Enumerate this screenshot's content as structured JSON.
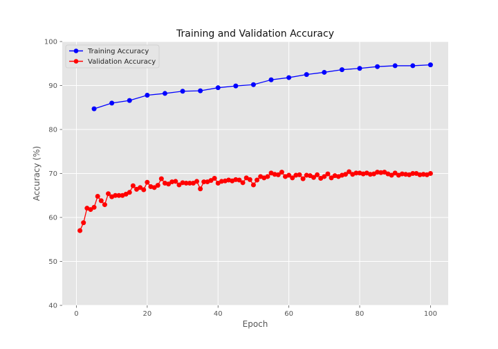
{
  "chart_data": {
    "type": "line",
    "title": "Training and Validation Accuracy",
    "xlabel": "Epoch",
    "ylabel": "Accuracy (%)",
    "xlim": [
      -4,
      105
    ],
    "ylim": [
      40,
      100
    ],
    "xticks": [
      0,
      20,
      40,
      60,
      80,
      100
    ],
    "yticks": [
      40,
      50,
      60,
      70,
      80,
      90,
      100
    ],
    "grid": true,
    "legend_position": "top-left",
    "background": "#e5e5e5",
    "series": [
      {
        "name": "Training Accuracy",
        "color": "#0000ff",
        "x": [
          5,
          10,
          15,
          20,
          25,
          30,
          35,
          40,
          45,
          50,
          55,
          60,
          65,
          70,
          75,
          80,
          85,
          90,
          95,
          100
        ],
        "y": [
          84.7,
          86.0,
          86.6,
          87.8,
          88.2,
          88.7,
          88.8,
          89.5,
          89.9,
          90.2,
          91.3,
          91.8,
          92.5,
          93.0,
          93.6,
          93.9,
          94.3,
          94.5,
          94.5,
          94.7
        ]
      },
      {
        "name": "Validation Accuracy",
        "color": "#ff0000",
        "x": [
          1,
          2,
          3,
          4,
          5,
          6,
          7,
          8,
          9,
          10,
          11,
          12,
          13,
          14,
          15,
          16,
          17,
          18,
          19,
          20,
          21,
          22,
          23,
          24,
          25,
          26,
          27,
          28,
          29,
          30,
          31,
          32,
          33,
          34,
          35,
          36,
          37,
          38,
          39,
          40,
          41,
          42,
          43,
          44,
          45,
          46,
          47,
          48,
          49,
          50,
          51,
          52,
          53,
          54,
          55,
          56,
          57,
          58,
          59,
          60,
          61,
          62,
          63,
          64,
          65,
          66,
          67,
          68,
          69,
          70,
          71,
          72,
          73,
          74,
          75,
          76,
          77,
          78,
          79,
          80,
          81,
          82,
          83,
          84,
          85,
          86,
          87,
          88,
          89,
          90,
          91,
          92,
          93,
          94,
          95,
          96,
          97,
          98,
          99,
          100
        ],
        "y": [
          57.0,
          58.8,
          62.1,
          61.8,
          62.3,
          64.8,
          63.8,
          62.9,
          65.4,
          64.7,
          65.0,
          65.0,
          65.0,
          65.3,
          65.7,
          67.2,
          66.4,
          66.8,
          66.3,
          68.0,
          67.0,
          66.8,
          67.3,
          68.8,
          67.8,
          67.6,
          68.1,
          68.2,
          67.4,
          67.9,
          67.8,
          67.8,
          67.8,
          68.2,
          66.5,
          68.1,
          68.1,
          68.4,
          68.9,
          67.8,
          68.2,
          68.3,
          68.5,
          68.3,
          68.6,
          68.5,
          67.9,
          69.0,
          68.6,
          67.4,
          68.5,
          69.3,
          69.0,
          69.3,
          70.1,
          69.8,
          69.7,
          70.3,
          69.3,
          69.6,
          69.0,
          69.6,
          69.7,
          68.8,
          69.6,
          69.5,
          69.1,
          69.7,
          68.9,
          69.3,
          69.9,
          69.0,
          69.5,
          69.3,
          69.6,
          69.8,
          70.4,
          69.8,
          70.1,
          70.1,
          69.9,
          70.1,
          69.8,
          69.9,
          70.3,
          70.2,
          70.3,
          69.9,
          69.6,
          70.1,
          69.6,
          69.9,
          69.8,
          69.7,
          70.0,
          70.0,
          69.7,
          69.8,
          69.7,
          70.0
        ]
      }
    ]
  }
}
